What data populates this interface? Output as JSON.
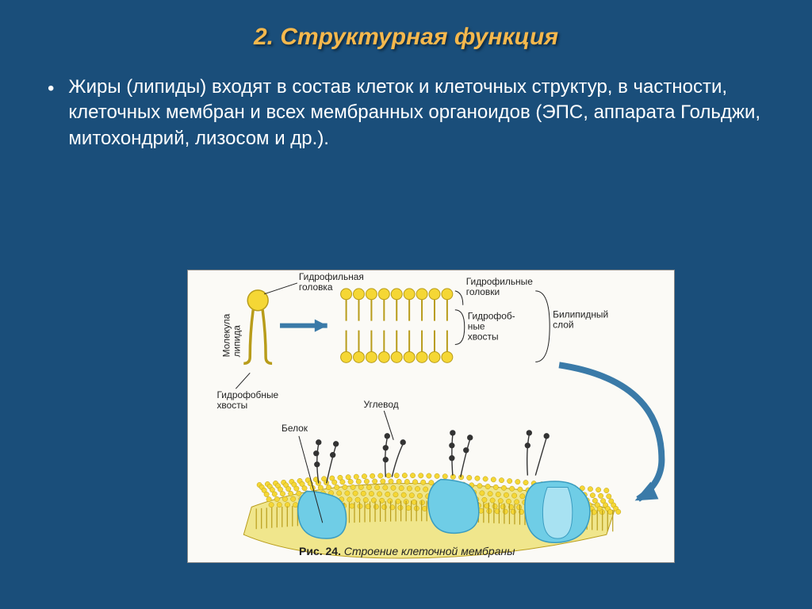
{
  "title": "2. Структурная функция",
  "body": "Жиры (липиды) входят в состав клеток и клеточных структур, в частности, клеточных мембран и всех мембранных органоидов (ЭПС, аппарата Гольджи, митохондрий, лизосом и др.).",
  "diagram": {
    "type": "infographic",
    "caption_prefix": "Рис. 24. ",
    "caption_italic": "Строение клеточной мембраны",
    "background_color": "#fbfaf6",
    "labels": {
      "lipid_molecule": "Молекула\nлипида",
      "hydrophilic_head": "Гидрофильная\nголовка",
      "hydrophilic_heads": "Гидрофильные\nголовки",
      "hydrophobic_tails_left": "Гидрофобные\nхвосты",
      "hydrophobic_tails_right": "Гидрофоб-\nные\nхвосты",
      "bilipid_layer": "Билипидный\nслой",
      "protein": "Белок",
      "carbohydrate": "Углевод"
    },
    "colors": {
      "lipid_head": "#f5d735",
      "lipid_head_stroke": "#b89c1a",
      "lipid_tail": "#b89c1a",
      "protein": "#6fcde6",
      "protein_dark": "#3a9cc0",
      "arrow": "#3a7aa8",
      "carb_chain": "#333333",
      "text": "#222222",
      "leader": "#222222"
    }
  },
  "slide_background": "#1a4e7a",
  "title_color": "#f5b84d"
}
